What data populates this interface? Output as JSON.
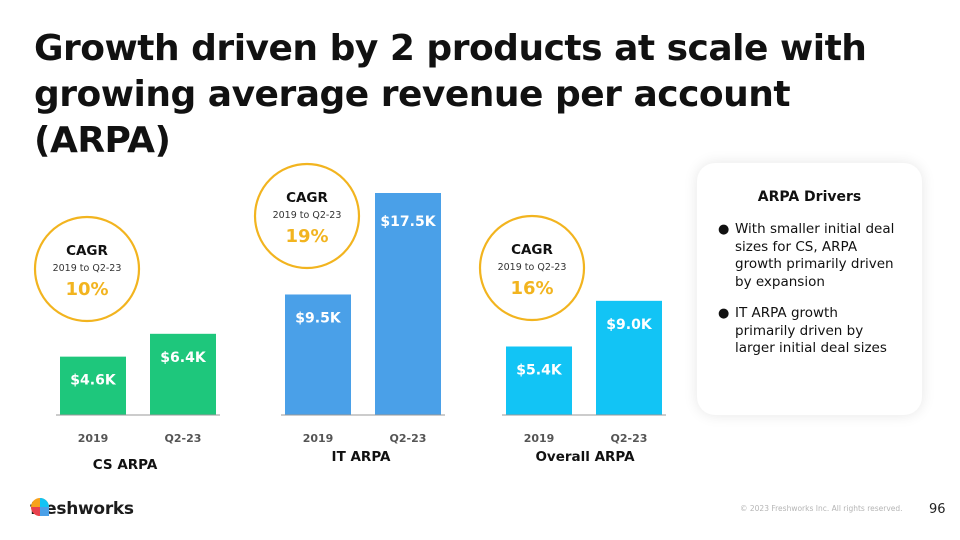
{
  "slide": {
    "title": "Growth driven by 2 products at scale with growing average revenue per account (ARPA)",
    "page_number": "96",
    "copyright": "© 2023 Freshworks Inc. All rights reserved.",
    "logo_text": "freshworks"
  },
  "drivers": {
    "title": "ARPA Drivers",
    "items": [
      "With smaller initial deal sizes for CS, ARPA growth primarily driven by expansion",
      "IT ARPA growth primarily driven by larger initial deal sizes"
    ]
  },
  "chart_data": [
    {
      "type": "bar",
      "title": "CS ARPA",
      "categories": [
        "2019",
        "Q2-23"
      ],
      "values": [
        4.6,
        6.4
      ],
      "value_labels": [
        "$4.6K",
        "$6.4K"
      ],
      "unit": "$K",
      "ylim": [
        0,
        17.5
      ],
      "color": "#1ec77c",
      "cagr": {
        "label": "CAGR",
        "range": "2019 to Q2-23",
        "value": "10%"
      }
    },
    {
      "type": "bar",
      "title": "IT ARPA",
      "categories": [
        "2019",
        "Q2-23"
      ],
      "values": [
        9.5,
        17.5
      ],
      "value_labels": [
        "$9.5K",
        "$17.5K"
      ],
      "unit": "$K",
      "ylim": [
        0,
        17.5
      ],
      "color": "#4aa0e8",
      "cagr": {
        "label": "CAGR",
        "range": "2019 to Q2-23",
        "value": "19%"
      }
    },
    {
      "type": "bar",
      "title": "Overall ARPA",
      "categories": [
        "2019",
        "Q2-23"
      ],
      "values": [
        5.4,
        9.0
      ],
      "value_labels": [
        "$5.4K",
        "$9.0K"
      ],
      "unit": "$K",
      "ylim": [
        0,
        17.5
      ],
      "color": "#12c4f5",
      "cagr": {
        "label": "CAGR",
        "range": "2019 to Q2-23",
        "value": "16%"
      }
    }
  ],
  "colors": {
    "cagr_ring": "#f2b41f",
    "cagr_value": "#f2b41f",
    "baseline": "#999999"
  }
}
